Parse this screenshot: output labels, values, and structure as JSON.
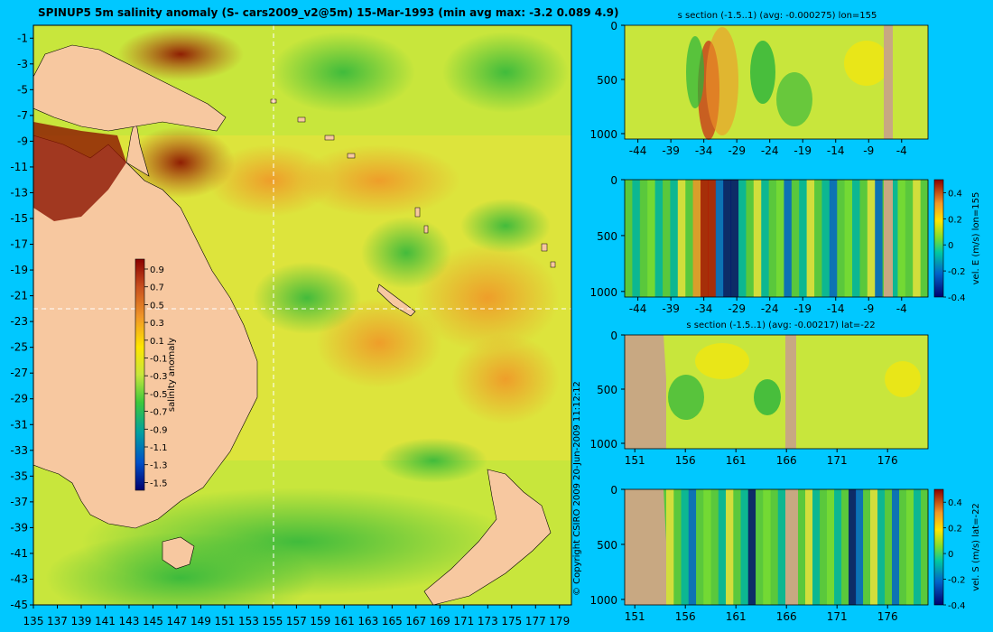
{
  "main_map": {
    "title": "SPINUP5 5m salinity anomaly (S- cars2009_v2@5m) 15-Mar-1993 (min avg max: -3.2 0.089 4.9)",
    "lat_ticks": [
      "-1",
      "-3",
      "-5",
      "-7",
      "-9",
      "-11",
      "-13",
      "-15",
      "-17",
      "-19",
      "-21",
      "-23",
      "-25",
      "-27",
      "-29",
      "-31",
      "-33",
      "-35",
      "-37",
      "-39",
      "-41",
      "-43",
      "-45"
    ],
    "lon_ticks": [
      "135",
      "137",
      "139",
      "141",
      "143",
      "145",
      "147",
      "149",
      "151",
      "153",
      "155",
      "157",
      "159",
      "161",
      "163",
      "165",
      "167",
      "169",
      "171",
      "173",
      "175",
      "177",
      "179"
    ],
    "colorbar_label": "salinity anomaly",
    "colorbar_ticks": [
      "0.9",
      "0.7",
      "0.5",
      "0.3",
      "0.1",
      "-0.1",
      "-0.3",
      "-0.5",
      "-0.7",
      "-0.9",
      "-1.1",
      "-1.3",
      "-1.5"
    ]
  },
  "copyright": "© Copyright CSIRO 2009   20-Jun-2009 11:12:12",
  "chart_data": [
    {
      "type": "heatmap",
      "title": "SPINUP5 5m salinity anomaly (S- cars2009_v2@5m) 15-Mar-1993 (min avg max: -3.2 0.089 4.9)",
      "xlabel": "",
      "ylabel": "",
      "xlim": [
        135,
        180
      ],
      "ylim": [
        -45,
        0
      ],
      "x_ticks": [
        135,
        137,
        139,
        141,
        143,
        145,
        147,
        149,
        151,
        153,
        155,
        157,
        159,
        161,
        163,
        165,
        167,
        169,
        171,
        173,
        175,
        177,
        179
      ],
      "y_ticks": [
        -1,
        -3,
        -5,
        -7,
        -9,
        -11,
        -13,
        -15,
        -17,
        -19,
        -21,
        -23,
        -25,
        -27,
        -29,
        -31,
        -33,
        -35,
        -37,
        -39,
        -41,
        -43,
        -45
      ],
      "colorbar": {
        "label": "salinity anomaly",
        "range": [
          -1.5,
          0.9
        ],
        "ticks": [
          0.9,
          0.7,
          0.5,
          0.3,
          0.1,
          -0.1,
          -0.3,
          -0.5,
          -0.7,
          -0.9,
          -1.1,
          -1.3,
          -1.5
        ]
      },
      "summary": {
        "min": -3.2,
        "avg": 0.089,
        "max": 4.9
      },
      "crosshair": {
        "lon": 155,
        "lat": -22
      }
    },
    {
      "type": "heatmap",
      "title": "s section (-1.5..1) (avg: -0.000275) lon=155",
      "xlim": [
        -46,
        0
      ],
      "ylim": [
        1050,
        0
      ],
      "x_ticks": [
        -44,
        -39,
        -34,
        -29,
        -24,
        -19,
        -14,
        -9,
        -4
      ],
      "y_ticks": [
        0,
        500,
        1000
      ]
    },
    {
      "type": "heatmap",
      "title": "",
      "xlim": [
        -46,
        0
      ],
      "ylim": [
        1050,
        0
      ],
      "x_ticks": [
        -44,
        -39,
        -34,
        -29,
        -24,
        -19,
        -14,
        -9,
        -4
      ],
      "y_ticks": [
        0,
        500,
        1000
      ],
      "colorbar": {
        "label": "vel. E (m/s) lon=155",
        "range": [
          -0.4,
          0.5
        ],
        "ticks": [
          0.4,
          0.2,
          0,
          -0.2,
          -0.4
        ]
      }
    },
    {
      "type": "heatmap",
      "title": "s section (-1.5..1) (avg: -0.00217) lat=-22",
      "xlim": [
        150,
        180
      ],
      "ylim": [
        1050,
        0
      ],
      "x_ticks": [
        151,
        156,
        161,
        166,
        171,
        176
      ],
      "y_ticks": [
        0,
        500,
        1000
      ]
    },
    {
      "type": "heatmap",
      "title": "",
      "xlim": [
        150,
        180
      ],
      "ylim": [
        1050,
        0
      ],
      "x_ticks": [
        151,
        156,
        161,
        166,
        171,
        176
      ],
      "y_ticks": [
        0,
        500,
        1000
      ],
      "colorbar": {
        "label": "vel. S (m/s) lat=-22",
        "range": [
          -0.4,
          0.5
        ],
        "ticks": [
          0.4,
          0.2,
          0,
          -0.2,
          -0.4
        ]
      }
    }
  ],
  "panels": {
    "p1": {
      "title": "s section (-1.5..1) (avg: -0.000275) lon=155",
      "x_ticks": [
        "-44",
        "-39",
        "-34",
        "-29",
        "-24",
        "-19",
        "-14",
        "-9",
        "-4"
      ],
      "y_ticks": [
        "0",
        "500",
        "1000"
      ]
    },
    "p2": {
      "cb_label": "vel. E (m/s) lon=155",
      "x_ticks": [
        "-44",
        "-39",
        "-34",
        "-29",
        "-24",
        "-19",
        "-14",
        "-9",
        "-4"
      ],
      "y_ticks": [
        "0",
        "500",
        "1000"
      ],
      "cb_ticks": [
        "0.4",
        "0.2",
        "0",
        "-0.2",
        "-0.4"
      ]
    },
    "p3": {
      "title": "s section (-1.5..1) (avg: -0.00217) lat=-22",
      "x_ticks": [
        "151",
        "156",
        "161",
        "166",
        "171",
        "176"
      ],
      "y_ticks": [
        "0",
        "500",
        "1000"
      ]
    },
    "p4": {
      "cb_label": "vel. S (m/s) lat=-22",
      "x_ticks": [
        "151",
        "156",
        "161",
        "166",
        "171",
        "176"
      ],
      "y_ticks": [
        "0",
        "500",
        "1000"
      ],
      "cb_ticks": [
        "0.4",
        "0.2",
        "0",
        "-0.2",
        "-0.4"
      ]
    }
  },
  "colors": {
    "background": "#00C8FF",
    "land": "#F7C8A0",
    "section_land": "#C8A882",
    "field_base": "#C8E63C"
  }
}
